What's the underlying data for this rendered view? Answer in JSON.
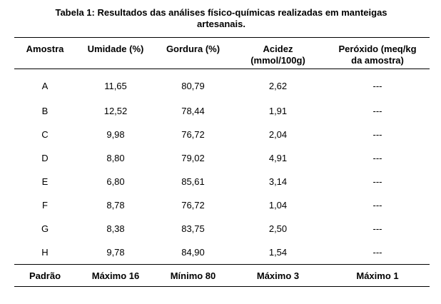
{
  "caption": {
    "line1": "Tabela 1: Resultados das análises físico-químicas realizadas em manteigas",
    "line2": "artesanais."
  },
  "table": {
    "headers": [
      {
        "line1": "Amostra",
        "line2": ""
      },
      {
        "line1": "Umidade (%)",
        "line2": ""
      },
      {
        "line1": "Gordura (%)",
        "line2": ""
      },
      {
        "line1": "Acidez",
        "line2": "(mmol/100g)"
      },
      {
        "line1": "Peróxido (meq/kg",
        "line2": "da amostra)"
      }
    ],
    "rows": [
      [
        "A",
        "11,65",
        "80,79",
        "2,62",
        "---"
      ],
      [
        "B",
        "12,52",
        "78,44",
        "1,91",
        "---"
      ],
      [
        "C",
        "9,98",
        "76,72",
        "2,04",
        "---"
      ],
      [
        "D",
        "8,80",
        "79,02",
        "4,91",
        "---"
      ],
      [
        "E",
        "6,80",
        "85,61",
        "3,14",
        "---"
      ],
      [
        "F",
        "8,78",
        "76,72",
        "1,04",
        "---"
      ],
      [
        "G",
        "8,38",
        "83,75",
        "2,50",
        "---"
      ],
      [
        "H",
        "9,78",
        "84,90",
        "1,54",
        "---"
      ]
    ],
    "footer": [
      "Padrão",
      "Máximo 16",
      "Mínimo 80",
      "Máximo 3",
      "Máximo 1"
    ]
  }
}
